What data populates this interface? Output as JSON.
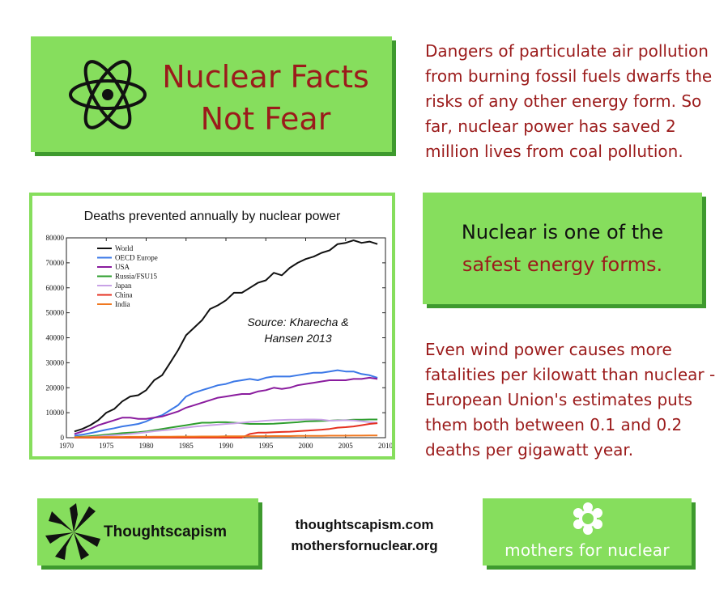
{
  "title": {
    "line1": "Nuclear Facts",
    "line2": "Not Fear"
  },
  "intro_text": "Dangers of particulate air pollution from burning fossil fuels dwarfs the risks of any other energy form. So far, nuclear power has saved 2 million lives from coal pollution.",
  "safe_box": {
    "line1": "Nuclear is one of the",
    "line2": "safest energy forms."
  },
  "wind_text": "Even wind power causes more fatalities per kilowatt than nuclear - European Union's estimates puts them both between 0.1 and 0.2 deaths per gigawatt year.",
  "footer": {
    "thoughtscapism_label": "Thoughtscapism",
    "site1": "thoughtscapism.com",
    "site2": "mothersfornuclear.org",
    "mothers_label": "mothers for nuclear"
  },
  "colors": {
    "green": "#86de5d",
    "green_shadow": "#3e9a2e",
    "dark_red": "#9b1b1b"
  },
  "icons": [
    "atom-icon",
    "leaf-star-icon",
    "flower-icon"
  ],
  "chart_data": {
    "type": "line",
    "title": "Deaths prevented annually by nuclear power",
    "annotation": [
      "Source: Kharecha &",
      "Hansen 2013"
    ],
    "xlim": [
      1970,
      2010
    ],
    "ylim": [
      0,
      80000
    ],
    "xticks": [
      1970,
      1975,
      1980,
      1985,
      1990,
      1995,
      2000,
      2005,
      2010
    ],
    "yticks": [
      0,
      10000,
      20000,
      30000,
      40000,
      50000,
      60000,
      70000,
      80000
    ],
    "legend_position": "top-left",
    "x": [
      1971,
      1972,
      1973,
      1974,
      1975,
      1976,
      1977,
      1978,
      1979,
      1980,
      1981,
      1982,
      1983,
      1984,
      1985,
      1986,
      1987,
      1988,
      1989,
      1990,
      1991,
      1992,
      1993,
      1994,
      1995,
      1996,
      1997,
      1998,
      1999,
      2000,
      2001,
      2002,
      2003,
      2004,
      2005,
      2006,
      2007,
      2008,
      2009
    ],
    "series": [
      {
        "name": "World",
        "color": "#111111",
        "values": [
          2500,
          3500,
          5000,
          7000,
          10000,
          11500,
          14500,
          16500,
          17000,
          19000,
          23000,
          25000,
          30000,
          35000,
          41000,
          44000,
          47000,
          51500,
          53000,
          55000,
          58000,
          58000,
          60000,
          62000,
          63000,
          66000,
          65000,
          68000,
          70000,
          71500,
          72500,
          74000,
          75000,
          77500,
          78000,
          79000,
          78000,
          78500,
          77500
        ]
      },
      {
        "name": "OECD Europe",
        "color": "#3b78e7",
        "values": [
          800,
          1200,
          1800,
          2500,
          3200,
          3800,
          4500,
          5000,
          5500,
          6500,
          8000,
          9000,
          11000,
          13000,
          16500,
          18000,
          19000,
          20000,
          21000,
          21500,
          22500,
          23000,
          23500,
          23000,
          24000,
          24500,
          24500,
          24500,
          25000,
          25500,
          26000,
          26000,
          26500,
          27000,
          26500,
          26500,
          25500,
          25000,
          24000
        ]
      },
      {
        "name": "USA",
        "color": "#8a1c9e",
        "values": [
          1500,
          2500,
          3500,
          5000,
          6000,
          7000,
          8000,
          8000,
          7500,
          7500,
          8000,
          8500,
          9500,
          10500,
          12000,
          13000,
          14000,
          15000,
          16000,
          16500,
          17000,
          17500,
          17500,
          18500,
          19000,
          20000,
          19500,
          20000,
          21000,
          21500,
          22000,
          22500,
          23000,
          23000,
          23000,
          23500,
          23500,
          24000,
          23500
        ]
      },
      {
        "name": "Russia/FSU15",
        "color": "#2e9e2e",
        "values": [
          200,
          400,
          600,
          900,
          1200,
          1500,
          1800,
          2000,
          2200,
          2500,
          3000,
          3500,
          4000,
          4500,
          5000,
          5500,
          6000,
          6000,
          6200,
          6200,
          6000,
          5800,
          5500,
          5500,
          5500,
          5600,
          5800,
          6000,
          6200,
          6500,
          6600,
          6700,
          6800,
          7000,
          7000,
          7200,
          7200,
          7300,
          7300
        ]
      },
      {
        "name": "Japan",
        "color": "#c8a2e6",
        "values": [
          100,
          200,
          300,
          500,
          800,
          1000,
          1200,
          1500,
          1800,
          2200,
          2600,
          2900,
          3200,
          3600,
          4000,
          4400,
          4700,
          5000,
          5200,
          5500,
          5700,
          6000,
          6300,
          6500,
          6800,
          7000,
          7100,
          7200,
          7200,
          7300,
          7300,
          7200,
          6800,
          6900,
          7000,
          6900,
          6600,
          6200,
          6000
        ]
      },
      {
        "name": "China",
        "color": "#e53020",
        "values": [
          0,
          0,
          0,
          0,
          0,
          0,
          0,
          0,
          0,
          0,
          0,
          0,
          0,
          0,
          0,
          0,
          0,
          0,
          0,
          0,
          0,
          0,
          1500,
          2000,
          2000,
          2200,
          2300,
          2400,
          2600,
          2800,
          3000,
          3200,
          3500,
          4000,
          4200,
          4500,
          5000,
          5500,
          5800
        ]
      },
      {
        "name": "India",
        "color": "#f07820",
        "values": [
          200,
          200,
          250,
          250,
          300,
          300,
          300,
          350,
          350,
          350,
          400,
          400,
          400,
          450,
          450,
          450,
          500,
          500,
          500,
          550,
          550,
          550,
          600,
          600,
          600,
          650,
          650,
          650,
          700,
          700,
          750,
          750,
          800,
          800,
          800,
          850,
          850,
          900,
          900
        ]
      }
    ]
  }
}
